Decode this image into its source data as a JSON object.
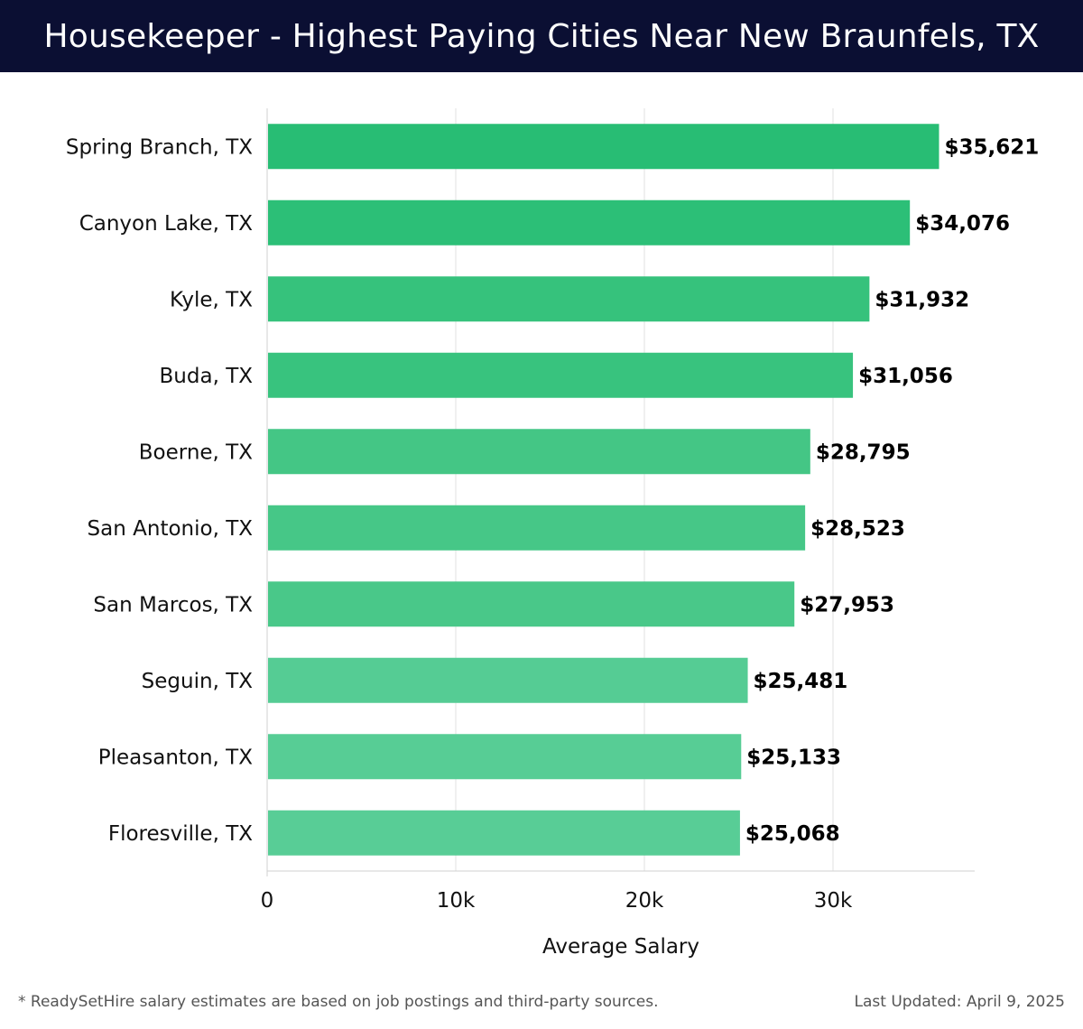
{
  "header": {
    "title": "Housekeeper - Highest Paying Cities Near New Braunfels, TX"
  },
  "chart_data": {
    "type": "bar",
    "orientation": "horizontal",
    "title": "Housekeeper - Highest Paying Cities Near New Braunfels, TX",
    "xlabel": "Average Salary",
    "ylabel": "",
    "categories": [
      "Spring Branch, TX",
      "Canyon Lake, TX",
      "Kyle, TX",
      "Buda, TX",
      "Boerne, TX",
      "San Antonio, TX",
      "San Marcos, TX",
      "Seguin, TX",
      "Pleasanton, TX",
      "Floresville, TX"
    ],
    "values": [
      35621,
      34076,
      31932,
      31056,
      28795,
      28523,
      27953,
      25481,
      25133,
      25068
    ],
    "value_labels": [
      "$35,621",
      "$34,076",
      "$31,932",
      "$31,056",
      "$28,795",
      "$28,523",
      "$27,953",
      "$25,481",
      "$25,133",
      "$25,068"
    ],
    "xlim": [
      0,
      37500
    ],
    "xticks": [
      0,
      10000,
      20000,
      30000
    ],
    "xtick_labels": [
      "0",
      "10k",
      "20k",
      "30k"
    ],
    "grid": true,
    "bar_colors": [
      "#28bd74",
      "#2cbf77",
      "#36c27c",
      "#38c37e",
      "#44c685",
      "#46c787",
      "#49c889",
      "#55cc94",
      "#57cd95",
      "#58cd96"
    ]
  },
  "footer": {
    "note": "* ReadySetHire salary estimates are based on job postings and third-party sources.",
    "updated": "Last Updated: April 9, 2025"
  }
}
